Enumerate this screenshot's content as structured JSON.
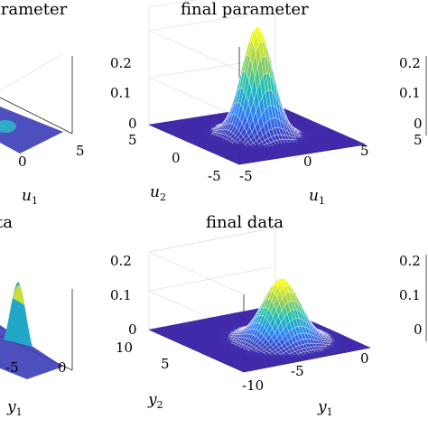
{
  "chart_data": [
    {
      "type": "surface",
      "title": "final parameter",
      "xlabel": "u1",
      "ylabel": "u2",
      "xlim": [
        -5,
        5
      ],
      "ylim": [
        -5,
        5
      ],
      "zlim": [
        0,
        0.25
      ],
      "x_ticks": [
        "-5",
        "0",
        "5"
      ],
      "y_ticks": [
        "-5",
        "0",
        "5"
      ],
      "z_ticks": [
        "0",
        "0.1",
        "0.2"
      ],
      "peak": {
        "x": 0,
        "y": 0,
        "z": 0.23,
        "sigma": 1.0
      },
      "colormap": [
        "#3e26a8",
        "#2e7df7",
        "#19c0b9",
        "#9ecf50",
        "#f9fb0e"
      ],
      "grid": true
    },
    {
      "type": "surface",
      "title": "final data",
      "xlabel": "y1",
      "ylabel": "y2",
      "xlim": [
        -10,
        0
      ],
      "ylim": [
        0,
        10
      ],
      "zlim": [
        0,
        0.2
      ],
      "x_ticks": [
        "-10",
        "-5",
        "0"
      ],
      "y_ticks": [
        "5",
        "10"
      ],
      "z_ticks": [
        "0",
        "0.1",
        "0.2"
      ],
      "peak": {
        "x": -4,
        "y": 4,
        "z": 0.16,
        "sigma": 1.2
      },
      "colormap": [
        "#3e26a8",
        "#2e7df7",
        "#19c0b9",
        "#9ecf50",
        "#f9fb0e"
      ],
      "grid": true
    }
  ],
  "partial_panels": {
    "top_left": {
      "title_fragment": "arameter",
      "x_ticks": [
        "0",
        "5"
      ],
      "xlabel": "u1"
    },
    "bottom_left": {
      "title_fragment": "ta",
      "x_ticks": [
        "-5",
        "0"
      ],
      "xlabel": "y1"
    },
    "top_right": {
      "z_ticks": [
        "0.2",
        "0.1",
        "0",
        "5"
      ]
    },
    "bottom_right": {
      "z_ticks": [
        "0.2",
        "0.1",
        "0"
      ]
    }
  }
}
